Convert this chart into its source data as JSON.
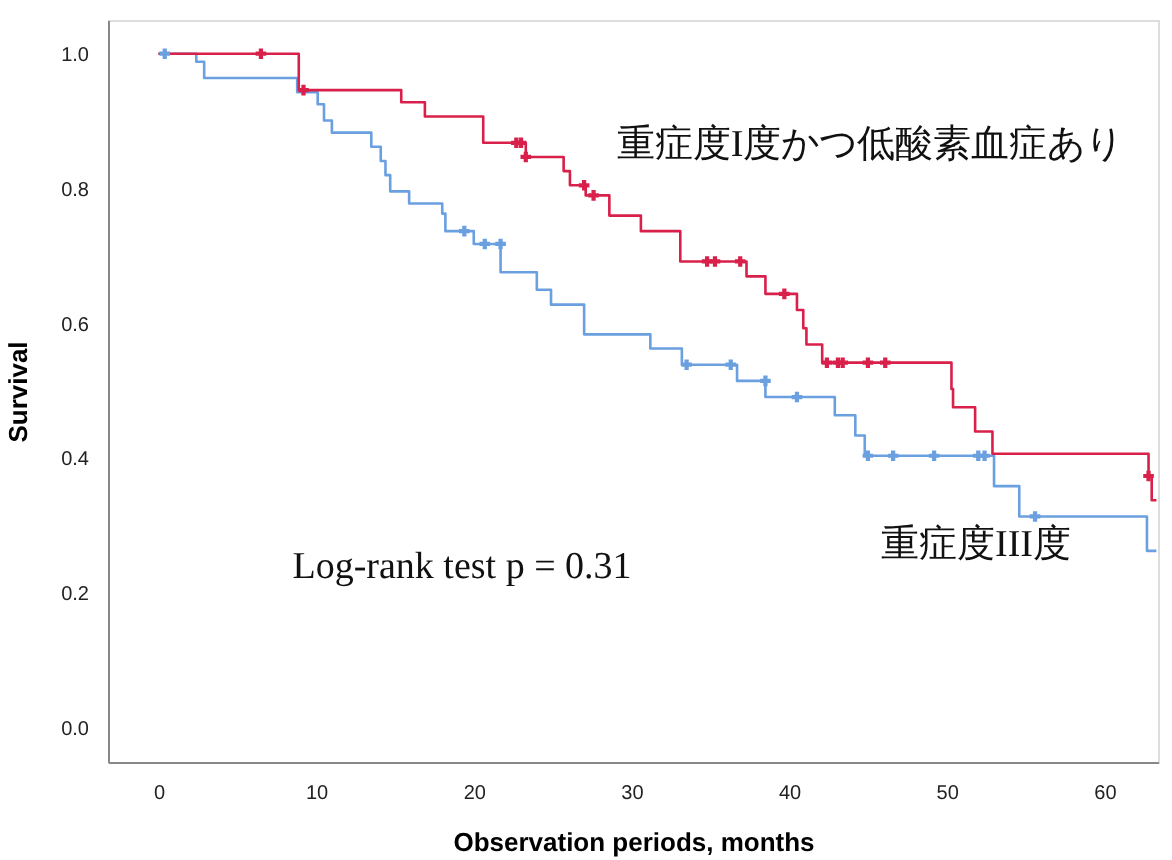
{
  "chart_data": {
    "type": "step",
    "xlabel": "Observation periods, months",
    "ylabel": "Survival",
    "xlim": [
      -3.2,
      63.4
    ],
    "ylim": [
      -0.05,
      1.05
    ],
    "xticks": [
      0,
      10,
      20,
      30,
      40,
      50,
      60
    ],
    "yticks": [
      {
        "value": 0,
        "label": "0.0"
      },
      {
        "value": 0.2,
        "label": "0.2"
      },
      {
        "value": 0.4,
        "label": "0.4"
      },
      {
        "value": 0.6,
        "label": "0.6"
      },
      {
        "value": 0.8,
        "label": "0.8"
      },
      {
        "value": 1,
        "label": "1.0"
      }
    ],
    "grid": false,
    "line_style": "solid",
    "annotations": [
      "Log-rank test p = 0.31"
    ],
    "series": [
      {
        "name": "重症度I度かつ低酸素血症あり",
        "color": "#d8204a",
        "x": [
          0,
          8.9,
          15.4,
          16.9,
          20.6,
          23.3,
          25.7,
          26.1,
          27.1,
          28.6,
          30.6,
          33.1,
          37.3,
          38.5,
          40.5,
          40.9,
          41.1,
          42.1,
          50.3,
          50.4,
          51.8,
          52.9,
          62.8,
          63.0,
          63.3
        ],
        "values": [
          1.0,
          0.946,
          0.928,
          0.907,
          0.868,
          0.847,
          0.826,
          0.805,
          0.79,
          0.76,
          0.737,
          0.692,
          0.67,
          0.644,
          0.62,
          0.593,
          0.569,
          0.542,
          0.503,
          0.476,
          0.44,
          0.407,
          0.374,
          0.338,
          0.338
        ]
      },
      {
        "name": "重症度III度",
        "color": "#6a9fe0",
        "x": [
          0,
          2.4,
          2.9,
          8.8,
          10.1,
          10.5,
          11.0,
          13.5,
          14.1,
          14.4,
          14.7,
          15.9,
          18.0,
          18.2,
          20.0,
          21.7,
          24.0,
          24.9,
          27.0,
          31.2,
          33.2,
          36.7,
          38.5,
          42.9,
          44.2,
          44.8,
          53.0,
          54.6,
          62.7,
          63.3
        ],
        "values": [
          1.0,
          0.988,
          0.964,
          0.943,
          0.925,
          0.901,
          0.883,
          0.862,
          0.841,
          0.82,
          0.796,
          0.778,
          0.763,
          0.737,
          0.718,
          0.676,
          0.65,
          0.628,
          0.584,
          0.563,
          0.539,
          0.515,
          0.491,
          0.464,
          0.434,
          0.404,
          0.359,
          0.314,
          0.263,
          0.263
        ]
      },
      {
        "type": "scatter",
        "marker": "cross",
        "color": "#d8204a",
        "x": [
          6.5,
          9.2,
          22.7,
          23.0,
          23.3,
          27.0,
          27.6,
          34.8,
          35.3,
          36.9,
          39.7,
          42.4,
          43.1,
          43.4,
          45.0,
          46.1,
          62.8
        ],
        "values": [
          1.0,
          0.946,
          0.868,
          0.868,
          0.847,
          0.805,
          0.79,
          0.692,
          0.692,
          0.692,
          0.644,
          0.542,
          0.542,
          0.542,
          0.542,
          0.542,
          0.374
        ]
      },
      {
        "type": "scatter",
        "marker": "cross",
        "color": "#6a9fe0",
        "x": [
          0.4,
          19.4,
          20.7,
          21.7,
          33.5,
          36.3,
          38.5,
          40.5,
          45.0,
          46.6,
          49.2,
          52.0,
          52.4,
          55.6
        ],
        "values": [
          1.0,
          0.737,
          0.718,
          0.718,
          0.539,
          0.539,
          0.515,
          0.491,
          0.404,
          0.404,
          0.404,
          0.404,
          0.404,
          0.314
        ]
      }
    ]
  }
}
